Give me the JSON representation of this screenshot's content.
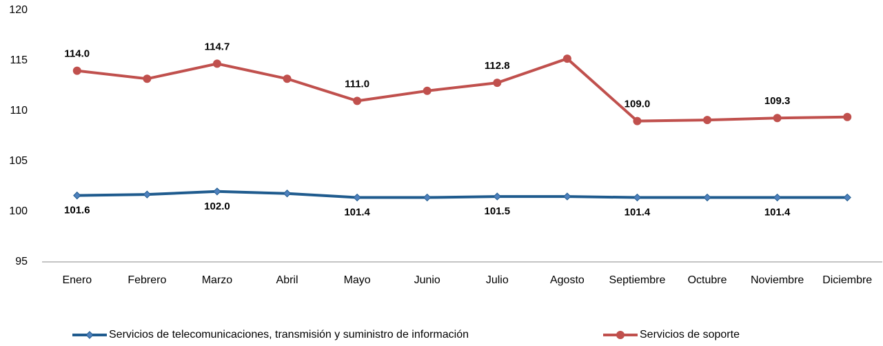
{
  "chart_data": {
    "type": "line",
    "categories": [
      "Enero",
      "Febrero",
      "Marzo",
      "Abril",
      "Mayo",
      "Junio",
      "Julio",
      "Agosto",
      "Septiembre",
      "Octubre",
      "Noviembre",
      "Diciembre"
    ],
    "series": [
      {
        "name": "Servicios de telecomunicaciones, transmisión y suministro de información",
        "color": "#1f5b8e",
        "marker": "diamond",
        "label_position": "below",
        "values": [
          101.6,
          101.7,
          102.0,
          101.8,
          101.4,
          101.4,
          101.5,
          101.5,
          101.4,
          101.4,
          101.4,
          101.4
        ],
        "value_labels": [
          "101.6",
          null,
          "102.0",
          null,
          "101.4",
          null,
          "101.5",
          null,
          "101.4",
          null,
          "101.4",
          null
        ]
      },
      {
        "name": "Servicios de soporte",
        "color": "#c0504d",
        "marker": "circle",
        "label_position": "above",
        "values": [
          114.0,
          113.2,
          114.7,
          113.2,
          111.0,
          112.0,
          112.8,
          115.2,
          109.0,
          109.1,
          109.3,
          109.4
        ],
        "value_labels": [
          "114.0",
          null,
          "114.7",
          null,
          "111.0",
          null,
          "112.8",
          null,
          "109.0",
          null,
          "109.3",
          null
        ]
      }
    ],
    "ylim": [
      95,
      120
    ],
    "yticks": [
      95,
      100,
      105,
      110,
      115,
      120
    ],
    "grid": false,
    "legend": "bottom"
  }
}
